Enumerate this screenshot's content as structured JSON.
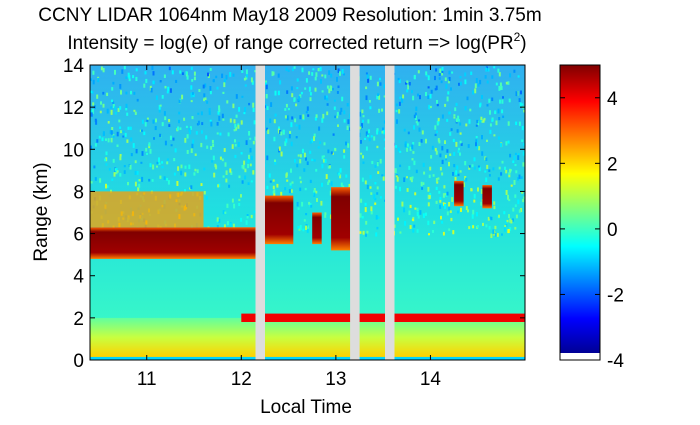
{
  "chart_data": {
    "type": "heatmap",
    "title_line1": "CCNY LIDAR 1064nm May18 2009 Resolution: 1min 3.75m",
    "title_line2_main": "Intensity = log(e) of range corrected return => log(PR",
    "title_line2_sup": "2",
    "title_line2_end": ")",
    "xlabel": "Local Time",
    "ylabel": "Range (km)",
    "x_range": [
      10.4,
      15.0
    ],
    "y_range": [
      0,
      14
    ],
    "x_ticks": [
      11,
      12,
      13,
      14
    ],
    "y_ticks": [
      0,
      2,
      4,
      6,
      8,
      10,
      12,
      14
    ],
    "colorbar": {
      "range": [
        -4,
        5
      ],
      "ticks": [
        -4,
        -2,
        0,
        2,
        4
      ]
    },
    "data_gaps_hours": [
      [
        12.15,
        12.25
      ],
      [
        13.15,
        13.25
      ],
      [
        13.52,
        13.62
      ]
    ],
    "layers": [
      {
        "feature": "surface",
        "x": [
          10.4,
          15.0
        ],
        "y_km": [
          0,
          0.15
        ],
        "value": -1
      },
      {
        "feature": "boundary layer",
        "x": [
          10.4,
          15.0
        ],
        "y_km": [
          0.15,
          2.0
        ],
        "value": 1.5
      },
      {
        "feature": "dense cloud layer",
        "x": [
          10.4,
          12.2
        ],
        "y_km": [
          4.8,
          6.3
        ],
        "value": 5
      },
      {
        "feature": "cloud top diffuse",
        "x": [
          10.4,
          11.6
        ],
        "y_km": [
          6.3,
          8.0
        ],
        "value": 2.5
      },
      {
        "feature": "cloud",
        "x": [
          12.25,
          12.55
        ],
        "y_km": [
          5.5,
          7.8
        ],
        "value": 4.5
      },
      {
        "feature": "cloud",
        "x": [
          12.75,
          12.85
        ],
        "y_km": [
          5.5,
          7.0
        ],
        "value": 4.5
      },
      {
        "feature": "cloud",
        "x": [
          12.95,
          13.15
        ],
        "y_km": [
          5.2,
          8.2
        ],
        "value": 4.5
      },
      {
        "feature": "cloud",
        "x": [
          14.25,
          14.35
        ],
        "y_km": [
          7.3,
          8.5
        ],
        "value": 4.5
      },
      {
        "feature": "cloud",
        "x": [
          14.55,
          14.65
        ],
        "y_km": [
          7.2,
          8.3
        ],
        "value": 4.5
      },
      {
        "feature": "aerosol layer top",
        "x": [
          12.0,
          15.0
        ],
        "y_km": [
          1.8,
          2.2
        ],
        "value": 4
      }
    ]
  }
}
